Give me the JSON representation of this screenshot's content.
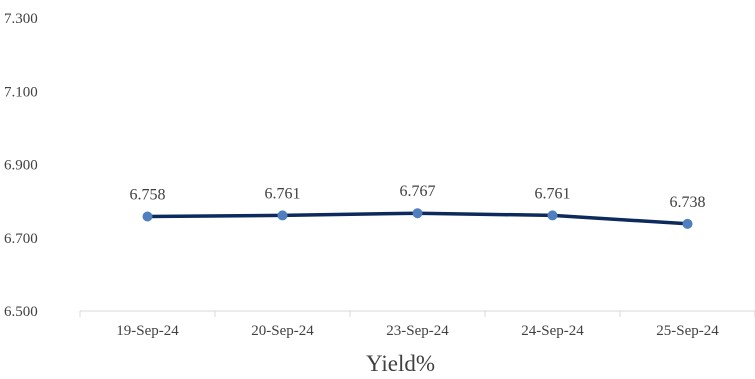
{
  "chart_data": {
    "type": "line",
    "categories": [
      "19-Sep-24",
      "20-Sep-24",
      "23-Sep-24",
      "24-Sep-24",
      "25-Sep-24"
    ],
    "series": [
      {
        "values": [
          6.758,
          6.761,
          6.767,
          6.761,
          6.738
        ]
      }
    ],
    "data_labels": [
      "6.758",
      "6.761",
      "6.767",
      "6.761",
      "6.738"
    ],
    "y_ticks": [
      6.5,
      6.7,
      6.9,
      7.1,
      7.3
    ],
    "y_tick_labels": [
      "6.500",
      "6.700",
      "6.900",
      "7.100",
      "7.300"
    ],
    "ylim": [
      6.5,
      7.3
    ],
    "xlabel": "Yield%",
    "ylabel": "",
    "title": "",
    "grid": false,
    "legend": "none",
    "colors": {
      "line": "#0d2a5c",
      "marker": "#4f7fbf",
      "axis": "#d9d9d9",
      "text": "#404040"
    }
  }
}
